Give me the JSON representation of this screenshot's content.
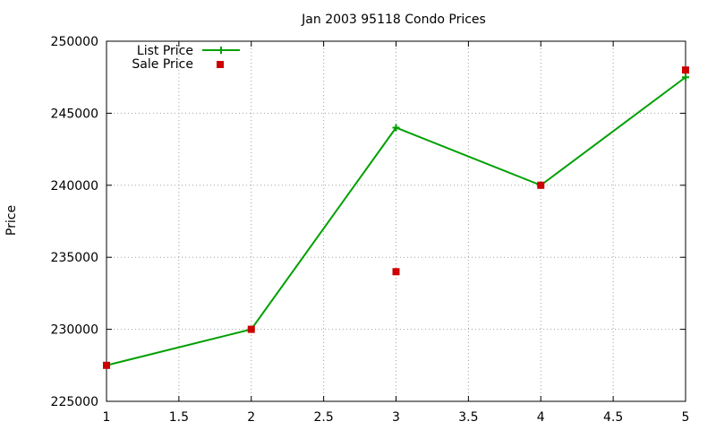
{
  "chart_data": {
    "type": "line",
    "title": "Jan 2003 95118 Condo Prices",
    "xlabel": "",
    "ylabel": "Price",
    "xlim": [
      1,
      5
    ],
    "ylim": [
      225000,
      250000
    ],
    "xticks": [
      "1",
      "1.5",
      "2",
      "2.5",
      "3",
      "3.5",
      "4",
      "4.5",
      "5"
    ],
    "yticks": [
      "225000",
      "230000",
      "235000",
      "240000",
      "245000",
      "250000"
    ],
    "grid": true,
    "legend_position": "top-left",
    "series": [
      {
        "name": "List Price",
        "style": "lines+plus-markers",
        "color": "#00a000",
        "x": [
          1,
          2,
          3,
          4,
          5
        ],
        "y": [
          227500,
          230000,
          244000,
          240000,
          247500
        ]
      },
      {
        "name": "Sale Price",
        "style": "square-markers",
        "color": "#cc0000",
        "x": [
          1,
          2,
          3,
          4,
          5
        ],
        "y": [
          227500,
          230000,
          234000,
          240000,
          248000
        ]
      }
    ]
  }
}
